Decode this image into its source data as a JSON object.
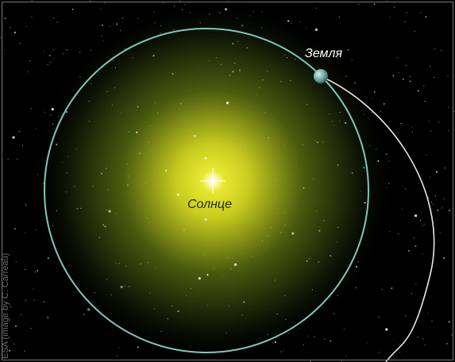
{
  "labels": {
    "earth": "Земля",
    "sun": "Солнце"
  },
  "credit": "ESA (image by C. Carreau)"
}
